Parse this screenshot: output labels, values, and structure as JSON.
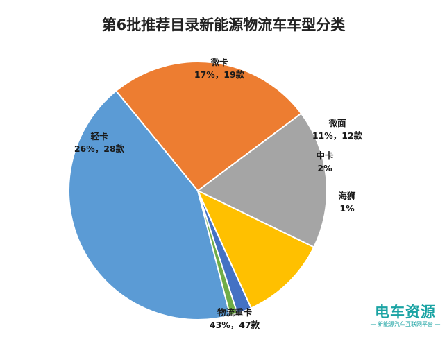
{
  "chart_data": {
    "type": "pie",
    "title": "第6批推荐目录新能源物流车车型分类",
    "slices": [
      {
        "name": "物流重卡",
        "label": "43%，47款",
        "value": 47,
        "color": "#5b9bd5"
      },
      {
        "name": "轻卡",
        "label": "26%，28款",
        "value": 28,
        "color": "#ed7d31"
      },
      {
        "name": "微卡",
        "label": "17%，19款",
        "value": 19,
        "color": "#a5a5a5"
      },
      {
        "name": "微面",
        "label": "11%，12款",
        "value": 12,
        "color": "#ffc000"
      },
      {
        "name": "中卡",
        "label": "2%",
        "value": 2,
        "color": "#4472c4"
      },
      {
        "name": "海狮",
        "label": "1%",
        "value": 1,
        "color": "#70ad47"
      }
    ]
  },
  "watermark": {
    "logo": "电车资源",
    "subtitle": "— 新能源汽车互联网平台 —"
  }
}
